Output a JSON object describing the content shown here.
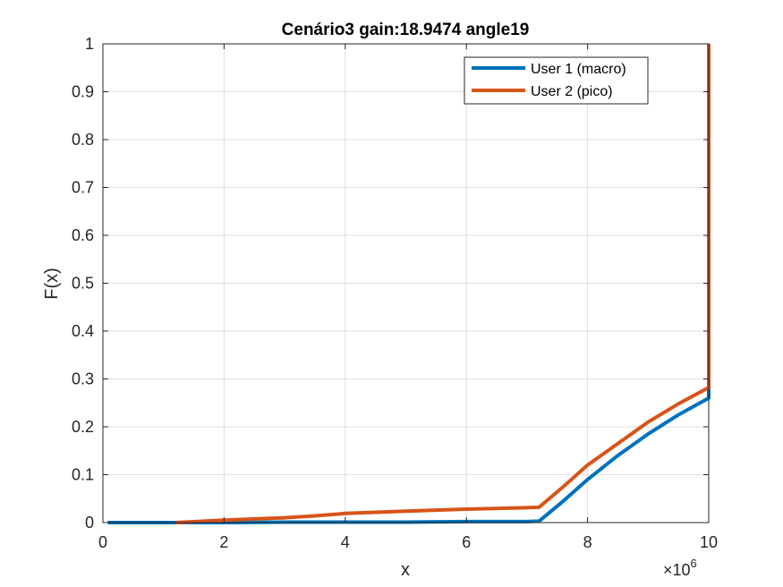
{
  "chart_data": {
    "type": "line",
    "title": "Cenário3 gain:18.9474 angle19",
    "xlabel": "x",
    "ylabel": "F(x)",
    "x_exponent_base": "×10",
    "x_exponent_power": "6",
    "xlim": [
      0,
      10
    ],
    "ylim": [
      0,
      1
    ],
    "x_ticks": [
      0,
      2,
      4,
      6,
      8,
      10
    ],
    "x_tick_labels": [
      "0",
      "2",
      "4",
      "6",
      "8",
      "10"
    ],
    "y_ticks": [
      0,
      0.1,
      0.2,
      0.3,
      0.4,
      0.5,
      0.6,
      0.7,
      0.8,
      0.9,
      1
    ],
    "y_tick_labels": [
      "0",
      "0.1",
      "0.2",
      "0.3",
      "0.4",
      "0.5",
      "0.6",
      "0.7",
      "0.8",
      "0.9",
      "1"
    ],
    "grid": true,
    "legend_position": "top-right",
    "series": [
      {
        "name": "User 1 (macro)",
        "color": "#0072BD",
        "x": [
          0.08,
          1,
          2,
          3,
          4,
          5,
          6,
          7,
          7.2,
          7.6,
          8,
          8.5,
          9,
          9.5,
          10,
          10
        ],
        "y": [
          0,
          0,
          0,
          0.001,
          0.001,
          0.001,
          0.002,
          0.002,
          0.003,
          0.045,
          0.09,
          0.14,
          0.185,
          0.225,
          0.26,
          0.28
        ]
      },
      {
        "name": "User 2 (pico)",
        "color": "#D95319",
        "x": [
          1.2,
          2,
          3,
          3.5,
          4,
          5,
          6,
          7,
          7.2,
          7.6,
          8,
          8.5,
          9,
          9.5,
          10,
          10
        ],
        "y": [
          0,
          0.005,
          0.01,
          0.014,
          0.019,
          0.024,
          0.028,
          0.031,
          0.032,
          0.075,
          0.12,
          0.165,
          0.21,
          0.248,
          0.282,
          1
        ]
      }
    ]
  }
}
